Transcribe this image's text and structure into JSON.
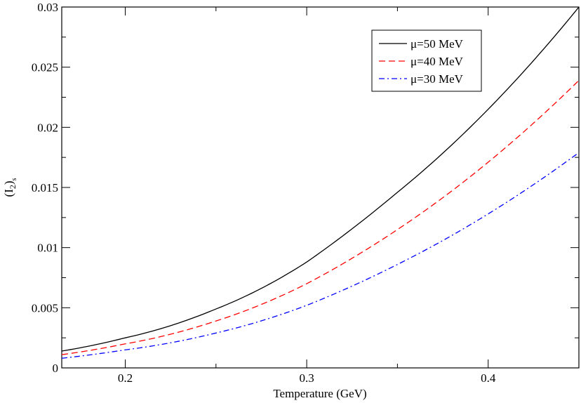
{
  "chart_data": {
    "type": "line",
    "title": "",
    "xlabel": "Temperature (GeV)",
    "ylabel": "(I",
    "ylabel_sub1": "2",
    "ylabel_after": ")",
    "ylabel_sub2": "s",
    "xlim": [
      0.165,
      0.45
    ],
    "ylim": [
      0,
      0.03
    ],
    "x_ticks": [
      0.2,
      0.3,
      0.4
    ],
    "x_tick_labels": [
      "0.2",
      "0.3",
      "0.4"
    ],
    "y_ticks": [
      0,
      0.005,
      0.01,
      0.015,
      0.02,
      0.025,
      0.03
    ],
    "y_tick_labels": [
      "0",
      "0.005",
      "0.01",
      "0.015",
      "0.02",
      "0.025",
      "0.03"
    ],
    "grid": false,
    "legend_position": "top-right",
    "x": [
      0.165,
      0.2,
      0.25,
      0.3,
      0.35,
      0.4,
      0.45
    ],
    "series": [
      {
        "name": "μ=50 MeV",
        "color": "#000000",
        "dash": "solid",
        "values": [
          0.0014,
          0.0025,
          0.0049,
          0.0088,
          0.0146,
          0.0215,
          0.03
        ]
      },
      {
        "name": "μ=40 MeV",
        "color": "#ff0000",
        "dash": "dashed",
        "values": [
          0.0011,
          0.002,
          0.0039,
          0.007,
          0.0115,
          0.0171,
          0.0239
        ]
      },
      {
        "name": "μ=30 MeV",
        "color": "#0000ff",
        "dash": "dashdot",
        "values": [
          0.0008,
          0.0015,
          0.0029,
          0.0052,
          0.0086,
          0.0128,
          0.0179
        ]
      }
    ]
  }
}
